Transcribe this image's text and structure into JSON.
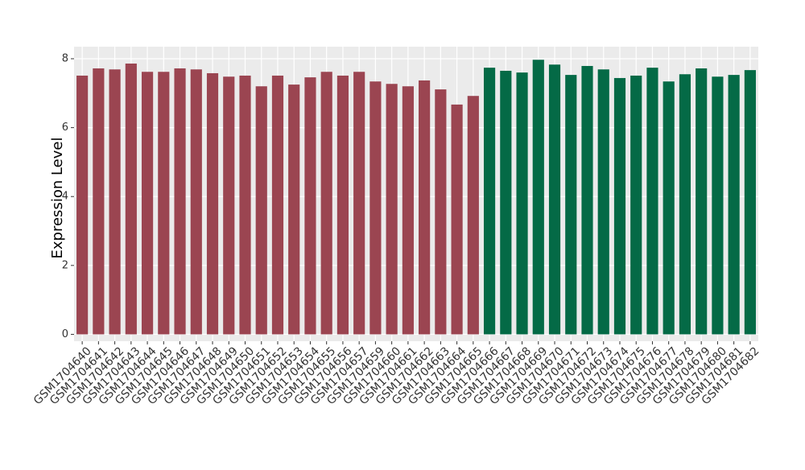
{
  "chart_data": {
    "type": "bar",
    "y_label": "Expression Level",
    "categories": [
      "GSM1704640",
      "GSM1704641",
      "GSM1704642",
      "GSM1704643",
      "GSM1704644",
      "GSM1704645",
      "GSM1704646",
      "GSM1704647",
      "GSM1704648",
      "GSM1704649",
      "GSM1704650",
      "GSM1704651",
      "GSM1704652",
      "GSM1704653",
      "GSM1704654",
      "GSM1704655",
      "GSM1704656",
      "GSM1704657",
      "GSM1704659",
      "GSM1704660",
      "GSM1704661",
      "GSM1704662",
      "GSM1704663",
      "GSM1704664",
      "GSM1704665",
      "GSM1704666",
      "GSM1704667",
      "GSM1704668",
      "GSM1704669",
      "GSM1704670",
      "GSM1704671",
      "GSM1704672",
      "GSM1704673",
      "GSM1704674",
      "GSM1704675",
      "GSM1704676",
      "GSM1704677",
      "GSM1704678",
      "GSM1704679",
      "GSM1704680",
      "GSM1704681",
      "GSM1704682"
    ],
    "values": [
      7.51,
      7.72,
      7.69,
      7.86,
      7.62,
      7.62,
      7.72,
      7.69,
      7.58,
      7.48,
      7.51,
      7.2,
      7.51,
      7.25,
      7.46,
      7.62,
      7.51,
      7.62,
      7.34,
      7.27,
      7.2,
      7.37,
      7.11,
      6.67,
      6.92,
      7.74,
      7.65,
      7.6,
      7.97,
      7.83,
      7.53,
      7.79,
      7.69,
      7.44,
      7.51,
      7.74,
      7.34,
      7.55,
      7.72,
      7.48,
      7.53,
      7.67
    ],
    "colors": [
      "#9b4551",
      "#9b4551",
      "#9b4551",
      "#9b4551",
      "#9b4551",
      "#9b4551",
      "#9b4551",
      "#9b4551",
      "#9b4551",
      "#9b4551",
      "#9b4551",
      "#9b4551",
      "#9b4551",
      "#9b4551",
      "#9b4551",
      "#9b4551",
      "#9b4551",
      "#9b4551",
      "#9b4551",
      "#9b4551",
      "#9b4551",
      "#9b4551",
      "#9b4551",
      "#9b4551",
      "#9b4551",
      "#046a46",
      "#046a46",
      "#046a46",
      "#046a46",
      "#046a46",
      "#046a46",
      "#046a46",
      "#046a46",
      "#046a46",
      "#046a46",
      "#046a46",
      "#046a46",
      "#046a46",
      "#046a46",
      "#046a46",
      "#046a46",
      "#046a46"
    ],
    "ylim": [
      -0.2,
      8.35
    ],
    "yticks": [
      0,
      2,
      4,
      6,
      8
    ],
    "grid": true
  }
}
